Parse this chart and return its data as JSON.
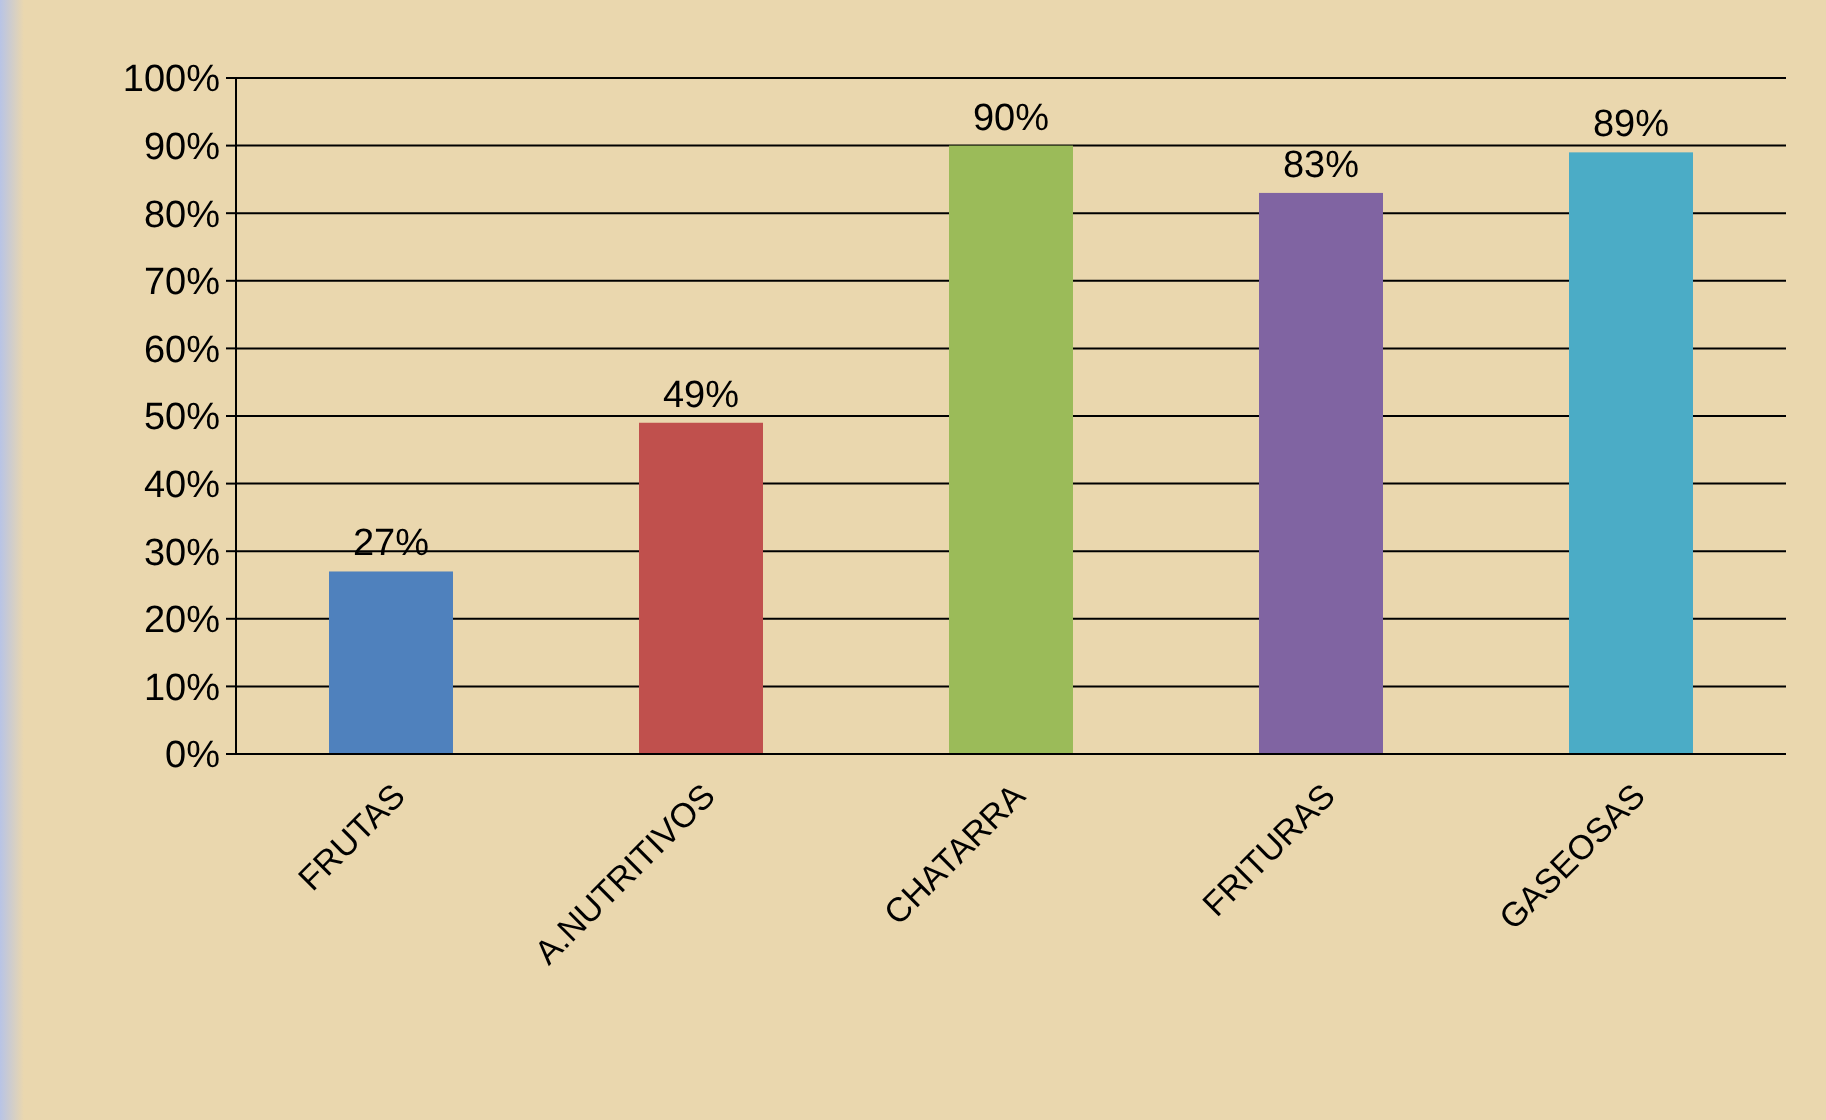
{
  "chart_data": {
    "type": "bar",
    "categories": [
      "FRUTAS",
      "A.NUTRITIVOS",
      "CHATARRA",
      "FRITURAS",
      "GASEOSAS"
    ],
    "values": [
      27,
      49,
      90,
      83,
      89
    ],
    "colors": [
      "#4f81bd",
      "#c0504d",
      "#9bbb59",
      "#8064a2",
      "#4bacc6"
    ],
    "value_labels": [
      "27%",
      "49%",
      "90%",
      "83%",
      "89%"
    ],
    "ylim": [
      0,
      100
    ],
    "yticks": [
      {
        "value": 0,
        "label": "0%"
      },
      {
        "value": 10,
        "label": "10%"
      },
      {
        "value": 20,
        "label": "20%"
      },
      {
        "value": 30,
        "label": "30%"
      },
      {
        "value": 40,
        "label": "40%"
      },
      {
        "value": 50,
        "label": "50%"
      },
      {
        "value": 60,
        "label": "60%"
      },
      {
        "value": 70,
        "label": "70%"
      },
      {
        "value": 80,
        "label": "80%"
      },
      {
        "value": 90,
        "label": "90%"
      },
      {
        "value": 100,
        "label": "100%"
      }
    ],
    "grid": "y"
  }
}
